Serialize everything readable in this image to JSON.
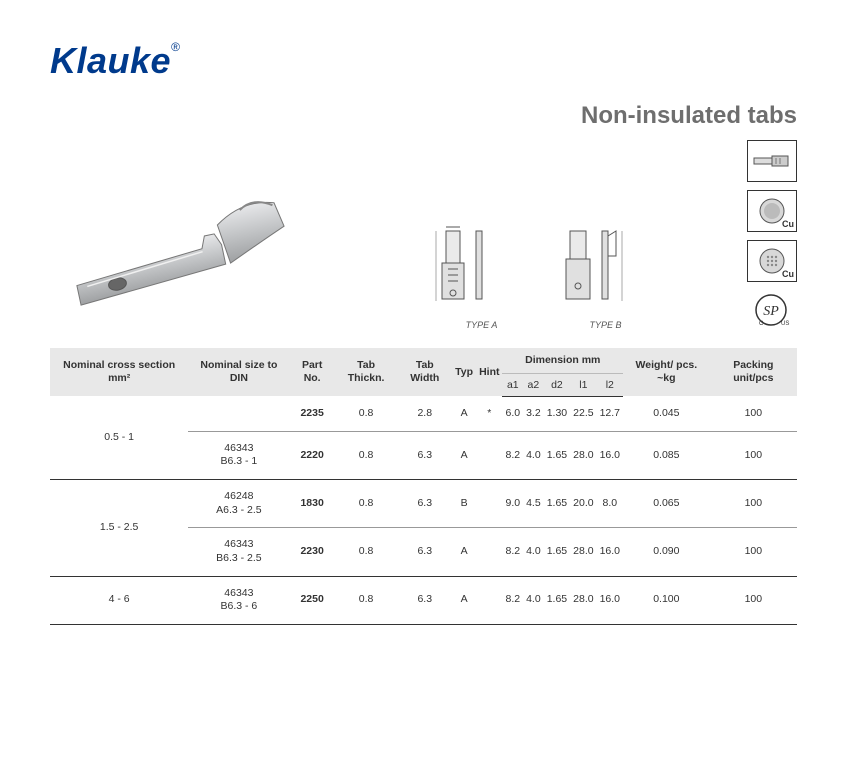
{
  "brand": {
    "name": "Klauke",
    "registered": "®"
  },
  "page_title": "Non-insulated tabs",
  "tech": {
    "type_a_label": "TYPE A",
    "type_b_label": "TYPE B"
  },
  "cert": {
    "cu": "Cu"
  },
  "table": {
    "headers": {
      "nominal_cross": "Nominal cross section mm²",
      "nominal_size": "Nominal size to DIN",
      "part_no": "Part No.",
      "tab_thickn": "Tab Thickn.",
      "tab_width": "Tab Width",
      "typ": "Typ",
      "hint": "Hint",
      "dimension": "Dimension mm",
      "a1": "a1",
      "a2": "a2",
      "d2": "d2",
      "l1": "l1",
      "l2": "l2",
      "weight": "Weight/ pcs. ~kg",
      "packing": "Packing unit/pcs"
    },
    "rows": [
      {
        "cross": "0.5 - 1",
        "din": "",
        "part": "2235",
        "thick": "0.8",
        "width": "2.8",
        "typ": "A",
        "hint": "*",
        "a1": "6.0",
        "a2": "3.2",
        "d2": "1.30",
        "l1": "22.5",
        "l2": "12.7",
        "wt": "0.045",
        "pk": "100"
      },
      {
        "cross": "",
        "din": "46343 B6.3 - 1",
        "part": "2220",
        "thick": "0.8",
        "width": "6.3",
        "typ": "A",
        "hint": "",
        "a1": "8.2",
        "a2": "4.0",
        "d2": "1.65",
        "l1": "28.0",
        "l2": "16.0",
        "wt": "0.085",
        "pk": "100"
      },
      {
        "cross": "1.5 - 2.5",
        "din": "46248 A6.3 - 2.5",
        "part": "1830",
        "thick": "0.8",
        "width": "6.3",
        "typ": "B",
        "hint": "",
        "a1": "9.0",
        "a2": "4.5",
        "d2": "1.65",
        "l1": "20.0",
        "l2": "8.0",
        "wt": "0.065",
        "pk": "100"
      },
      {
        "cross": "",
        "din": "46343 B6.3 - 2.5",
        "part": "2230",
        "thick": "0.8",
        "width": "6.3",
        "typ": "A",
        "hint": "",
        "a1": "8.2",
        "a2": "4.0",
        "d2": "1.65",
        "l1": "28.0",
        "l2": "16.0",
        "wt": "0.090",
        "pk": "100"
      },
      {
        "cross": "4 - 6",
        "din": "46343 B6.3 - 6",
        "part": "2250",
        "thick": "0.8",
        "width": "6.3",
        "typ": "A",
        "hint": "",
        "a1": "8.2",
        "a2": "4.0",
        "d2": "1.65",
        "l1": "28.0",
        "l2": "16.0",
        "wt": "0.100",
        "pk": "100"
      }
    ]
  },
  "colors": {
    "brand": "#003a8c",
    "title": "#6e6e6e",
    "header_bg": "#e8e8e8",
    "metal_light": "#d6d8da",
    "metal_mid": "#b0b2b4",
    "metal_dark": "#8a8c8e"
  }
}
